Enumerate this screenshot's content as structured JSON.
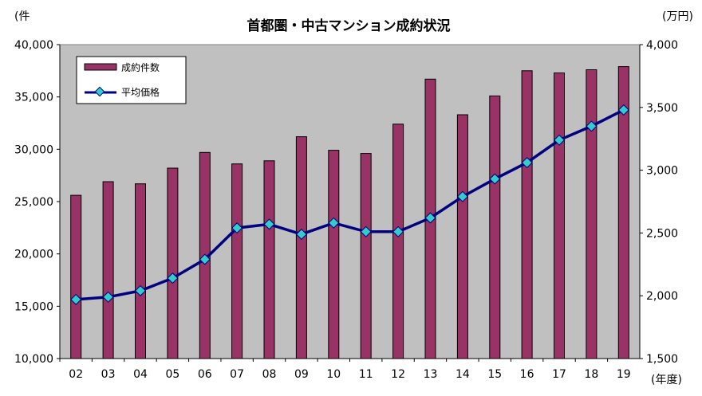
{
  "chart_data": {
    "type": "bar+line",
    "title": "首都圏・中古マンション成約状況",
    "categories": [
      "02",
      "03",
      "04",
      "05",
      "06",
      "07",
      "08",
      "09",
      "10",
      "11",
      "12",
      "13",
      "14",
      "15",
      "16",
      "17",
      "18",
      "19"
    ],
    "x_unit": "(年度)",
    "left_axis": {
      "unit": "(件",
      "ylim": [
        10000,
        40000
      ],
      "ticks": [
        "10,000",
        "15,000",
        "20,000",
        "25,000",
        "30,000",
        "35,000",
        "40,000"
      ],
      "tick_values": [
        10000,
        15000,
        20000,
        25000,
        30000,
        35000,
        40000
      ]
    },
    "right_axis": {
      "unit": "(万円)",
      "ylim": [
        1500,
        4000
      ],
      "ticks": [
        "1,500",
        "2,000",
        "2,500",
        "3,000",
        "3,500",
        "4,000"
      ],
      "tick_values": [
        1500,
        2000,
        2500,
        3000,
        3500,
        4000
      ]
    },
    "series": [
      {
        "name": "成約件数",
        "type": "bar",
        "axis": "left",
        "color": "#993366",
        "values": [
          25600,
          26900,
          26700,
          28200,
          29700,
          28600,
          28900,
          31200,
          29900,
          29600,
          32400,
          36700,
          33300,
          35100,
          37500,
          37300,
          37600,
          37900
        ]
      },
      {
        "name": "平均価格",
        "type": "line",
        "axis": "right",
        "color": "#000080",
        "marker_color": "#33CCCC",
        "values": [
          1970,
          1990,
          2040,
          2140,
          2290,
          2540,
          2570,
          2490,
          2580,
          2510,
          2510,
          2620,
          2790,
          2930,
          3060,
          3240,
          3350,
          3480
        ]
      }
    ],
    "plot_background": "#C0C0C0",
    "grid": false,
    "legend_position": "top-left"
  }
}
